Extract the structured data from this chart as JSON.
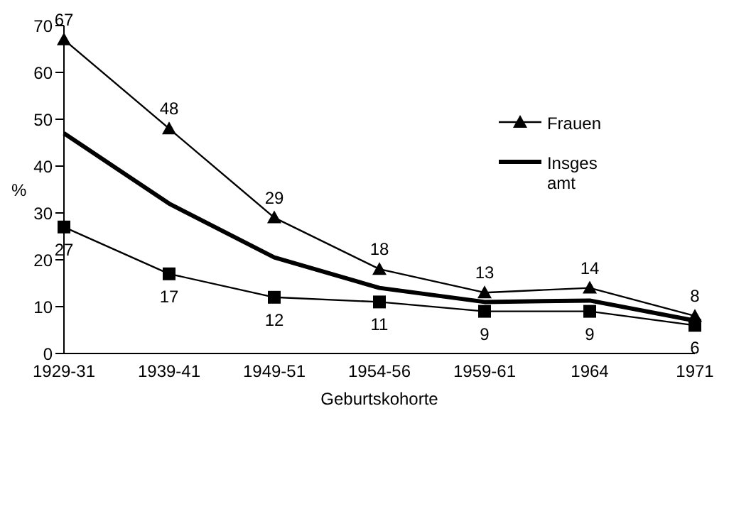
{
  "chart_data": {
    "type": "line",
    "xlabel": "Geburtskohorte",
    "ylabel": "%",
    "categories": [
      "1929-31",
      "1939-41",
      "1949-51",
      "1954-56",
      "1959-61",
      "1964",
      "1971"
    ],
    "series": [
      {
        "name": "Frauen",
        "color": "#000000",
        "marker": "triangle",
        "values": [
          67,
          48,
          29,
          18,
          13,
          14,
          8
        ],
        "value_labels": [
          "67",
          "48",
          "29",
          "18",
          "13",
          "14",
          "8"
        ]
      },
      {
        "name": "Insges amt",
        "color": "#000000",
        "marker": "none",
        "values": [
          47,
          32,
          20.5,
          14,
          11,
          11.3,
          7
        ]
      },
      {
        "color": "#000000",
        "marker": "square",
        "values": [
          27,
          17,
          12,
          11,
          9,
          9,
          6
        ],
        "value_labels": [
          "27",
          "17",
          "12",
          "11",
          "9",
          "9",
          "6"
        ]
      }
    ],
    "ylim": [
      0,
      70
    ],
    "yticks": [
      0,
      10,
      20,
      30,
      40,
      50,
      60,
      70
    ],
    "grid": false,
    "legend": "top right",
    "line_style": "solid"
  }
}
